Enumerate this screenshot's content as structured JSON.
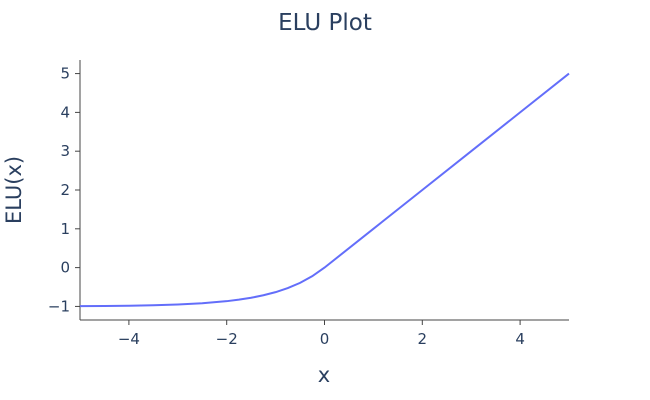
{
  "chart_data": {
    "type": "line",
    "title": "ELU Plot",
    "xlabel": "x",
    "ylabel": "ELU(x)",
    "xlim": [
      -5,
      5
    ],
    "ylim": [
      -1.35,
      5.35
    ],
    "xticks": [
      -4,
      -2,
      0,
      2,
      4
    ],
    "yticks": [
      -1,
      0,
      1,
      2,
      3,
      4,
      5
    ],
    "xtick_labels": [
      "−4",
      "−2",
      "0",
      "2",
      "4"
    ],
    "ytick_labels": [
      "−1",
      "0",
      "1",
      "2",
      "3",
      "4",
      "5"
    ],
    "grid": false,
    "line_color": "#636efa",
    "series": [
      {
        "x": [
          -5,
          -4.5,
          -4,
          -3.5,
          -3,
          -2.5,
          -2,
          -1.75,
          -1.5,
          -1.25,
          -1,
          -0.75,
          -0.5,
          -0.25,
          0,
          1,
          2,
          3,
          4,
          5
        ],
        "y": [
          -0.993,
          -0.989,
          -0.982,
          -0.97,
          -0.95,
          -0.918,
          -0.865,
          -0.826,
          -0.777,
          -0.713,
          -0.632,
          -0.528,
          -0.393,
          -0.221,
          0,
          1,
          2,
          3,
          4,
          5
        ]
      }
    ]
  }
}
